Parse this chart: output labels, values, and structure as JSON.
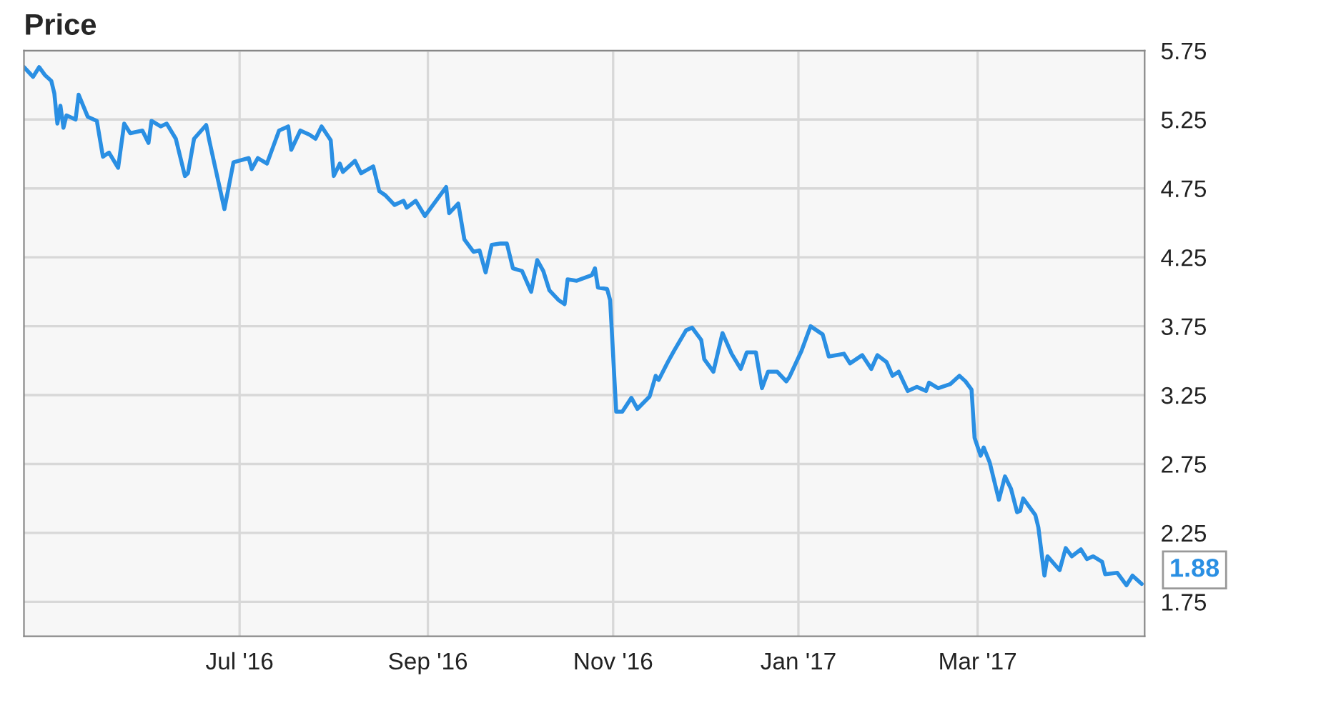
{
  "chart_data": {
    "type": "line",
    "title": "Price",
    "x": [
      "2016-04-21",
      "2016-04-24",
      "2016-04-26",
      "2016-04-28",
      "2016-04-30",
      "2016-05-01",
      "2016-05-02",
      "2016-05-03",
      "2016-05-04",
      "2016-05-05",
      "2016-05-08",
      "2016-05-09",
      "2016-05-12",
      "2016-05-15",
      "2016-05-17",
      "2016-05-19",
      "2016-05-22",
      "2016-05-24",
      "2016-05-26",
      "2016-05-30",
      "2016-06-01",
      "2016-06-02",
      "2016-06-05",
      "2016-06-07",
      "2016-06-10",
      "2016-06-13",
      "2016-06-14",
      "2016-06-16",
      "2016-06-20",
      "2016-06-21",
      "2016-06-26",
      "2016-06-29",
      "2016-07-04",
      "2016-07-05",
      "2016-07-07",
      "2016-07-10",
      "2016-07-12",
      "2016-07-14",
      "2016-07-17",
      "2016-07-18",
      "2016-07-21",
      "2016-07-24",
      "2016-07-26",
      "2016-07-28",
      "2016-07-31",
      "2016-08-01",
      "2016-08-03",
      "2016-08-04",
      "2016-08-08",
      "2016-08-10",
      "2016-08-14",
      "2016-08-16",
      "2016-08-18",
      "2016-08-21",
      "2016-08-24",
      "2016-08-25",
      "2016-08-28",
      "2016-08-31",
      "2016-09-07",
      "2016-09-08",
      "2016-09-11",
      "2016-09-13",
      "2016-09-16",
      "2016-09-18",
      "2016-09-20",
      "2016-09-22",
      "2016-09-25",
      "2016-09-27",
      "2016-09-29",
      "2016-10-02",
      "2016-10-05",
      "2016-10-07",
      "2016-10-09",
      "2016-10-11",
      "2016-10-14",
      "2016-10-16",
      "2016-10-17",
      "2016-10-20",
      "2016-10-25",
      "2016-10-26",
      "2016-10-27",
      "2016-10-30",
      "2016-10-31",
      "2016-11-02",
      "2016-11-04",
      "2016-11-07",
      "2016-11-09",
      "2016-11-13",
      "2016-11-15",
      "2016-11-16",
      "2016-11-19",
      "2016-11-21",
      "2016-11-25",
      "2016-11-27",
      "2016-11-30",
      "2016-12-01",
      "2016-12-04",
      "2016-12-07",
      "2016-12-10",
      "2016-12-13",
      "2016-12-15",
      "2016-12-18",
      "2016-12-20",
      "2016-12-22",
      "2016-12-25",
      "2016-12-28",
      "2016-12-29",
      "2017-01-02",
      "2017-01-05",
      "2017-01-09",
      "2017-01-11",
      "2017-01-16",
      "2017-01-18",
      "2017-01-22",
      "2017-01-25",
      "2017-01-27",
      "2017-01-30",
      "2017-02-01",
      "2017-02-03",
      "2017-02-06",
      "2017-02-09",
      "2017-02-10",
      "2017-02-12",
      "2017-02-13",
      "2017-02-16",
      "2017-02-20",
      "2017-02-23",
      "2017-02-25",
      "2017-02-27",
      "2017-02-28",
      "2017-03-02",
      "2017-03-03",
      "2017-03-05",
      "2017-03-08",
      "2017-03-10",
      "2017-03-12",
      "2017-03-14",
      "2017-03-15",
      "2017-03-16",
      "2017-03-20",
      "2017-03-21",
      "2017-03-23",
      "2017-03-24",
      "2017-03-28",
      "2017-03-30",
      "2017-04-01",
      "2017-04-04",
      "2017-04-06",
      "2017-04-08",
      "2017-04-11",
      "2017-04-12",
      "2017-04-16",
      "2017-04-19",
      "2017-04-21",
      "2017-04-24"
    ],
    "series": [
      {
        "color": "#2a8fe3",
        "values": [
          5.63,
          5.56,
          5.63,
          5.57,
          5.53,
          5.44,
          5.22,
          5.35,
          5.19,
          5.28,
          5.25,
          5.43,
          5.27,
          5.24,
          4.98,
          5.01,
          4.9,
          5.22,
          5.15,
          5.17,
          5.08,
          5.24,
          5.2,
          5.22,
          5.11,
          4.84,
          4.86,
          5.11,
          5.21,
          5.1,
          4.6,
          4.94,
          4.97,
          4.89,
          4.97,
          4.93,
          5.05,
          5.17,
          5.2,
          5.03,
          5.17,
          5.14,
          5.11,
          5.2,
          5.1,
          4.84,
          4.93,
          4.87,
          4.95,
          4.86,
          4.91,
          4.73,
          4.7,
          4.63,
          4.66,
          4.61,
          4.66,
          4.55,
          4.76,
          4.57,
          4.64,
          4.38,
          4.29,
          4.3,
          4.14,
          4.34,
          4.35,
          4.35,
          4.17,
          4.15,
          4.0,
          4.23,
          4.15,
          4.01,
          3.94,
          3.91,
          4.09,
          4.08,
          4.12,
          4.17,
          4.03,
          4.02,
          3.94,
          3.13,
          3.13,
          3.23,
          3.15,
          3.24,
          3.39,
          3.36,
          3.49,
          3.57,
          3.72,
          3.74,
          3.65,
          3.51,
          3.42,
          3.7,
          3.55,
          3.44,
          3.56,
          3.56,
          3.3,
          3.42,
          3.42,
          3.35,
          3.38,
          3.57,
          3.75,
          3.69,
          3.53,
          3.55,
          3.48,
          3.54,
          3.44,
          3.54,
          3.49,
          3.39,
          3.42,
          3.28,
          3.31,
          3.3,
          3.28,
          3.34,
          3.3,
          3.33,
          3.39,
          3.35,
          3.29,
          2.94,
          2.81,
          2.87,
          2.76,
          2.49,
          2.66,
          2.57,
          2.4,
          2.41,
          2.5,
          2.38,
          2.29,
          1.94,
          2.08,
          1.98,
          2.14,
          2.08,
          2.13,
          2.06,
          2.08,
          2.04,
          1.95,
          1.96,
          1.87,
          1.94,
          1.88
        ]
      }
    ],
    "xlim": [
      "2016-04-21",
      "2017-04-25"
    ],
    "xticks": [
      {
        "value": "2016-07-01",
        "label": "Jul '16"
      },
      {
        "value": "2016-09-01",
        "label": "Sep '16"
      },
      {
        "value": "2016-11-01",
        "label": "Nov '16"
      },
      {
        "value": "2017-01-01",
        "label": "Jan '17"
      },
      {
        "value": "2017-03-01",
        "label": "Mar '17"
      }
    ],
    "ylim": [
      1.5,
      5.75
    ],
    "yticks": [
      1.75,
      2.25,
      2.75,
      3.25,
      3.75,
      4.25,
      4.75,
      5.25,
      5.75
    ],
    "annotations": [
      {
        "text": "1.88",
        "x": "2017-04-24",
        "y": 1.88
      }
    ],
    "grid": true,
    "marker": "none",
    "line_style": "solid"
  }
}
